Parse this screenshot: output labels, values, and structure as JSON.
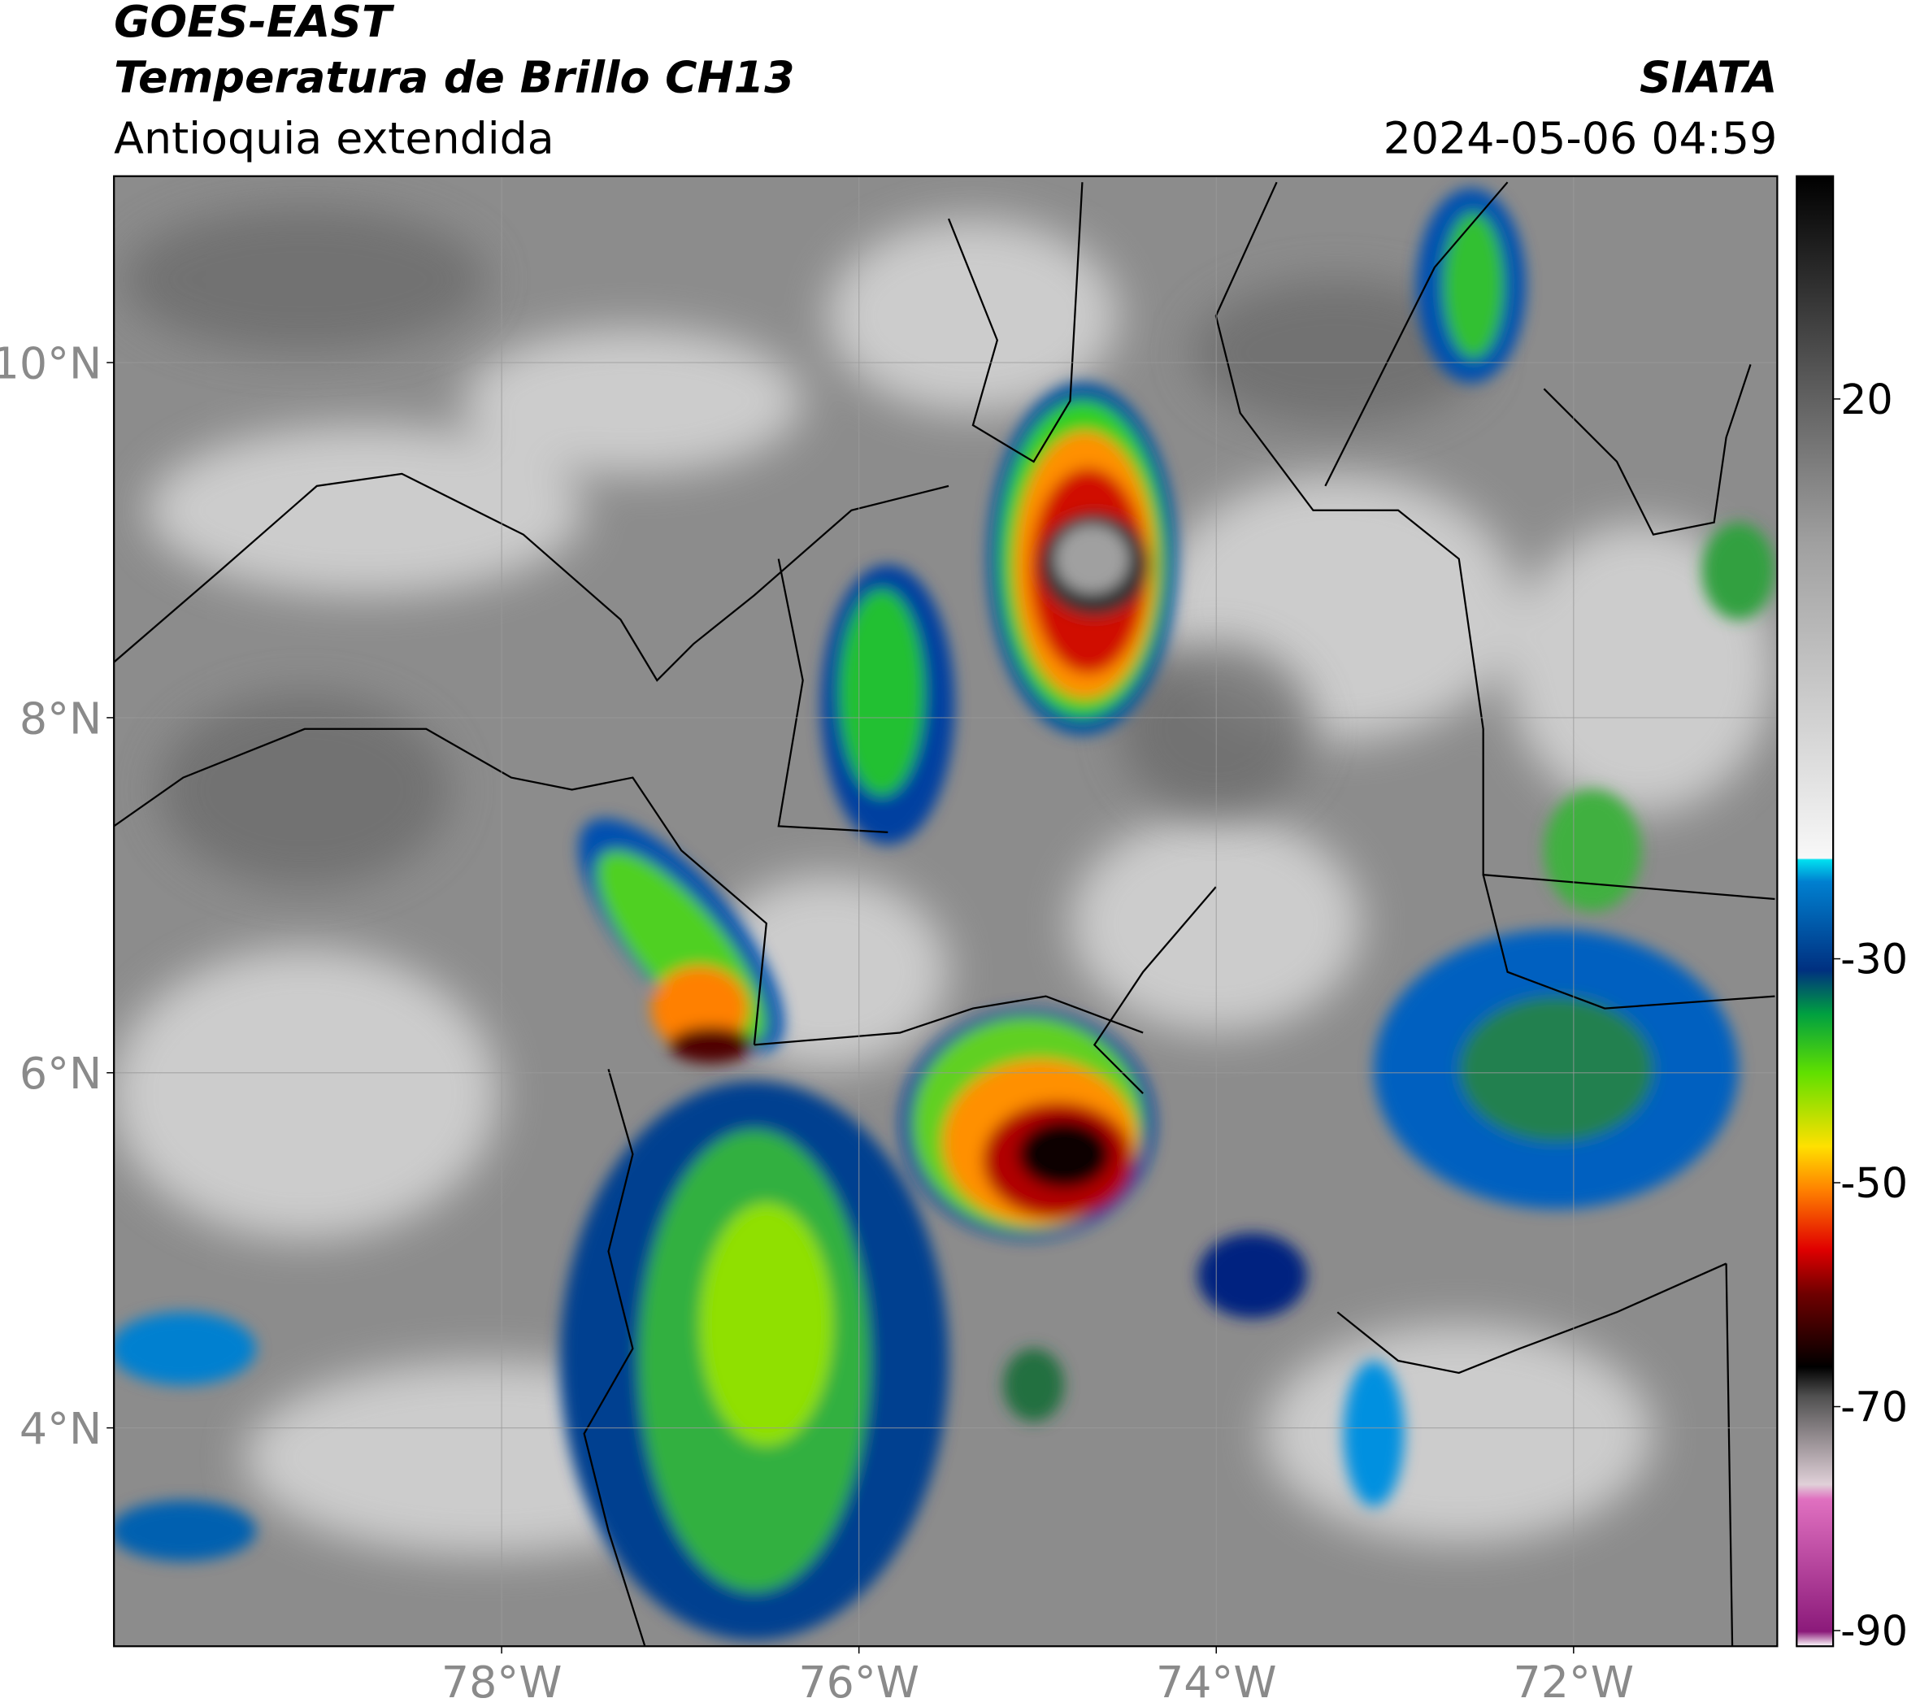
{
  "header": {
    "satellite": "GOES-EAST",
    "product": "Temperatura de Brillo CH13",
    "region": "Antioquia extendida",
    "source": "SIATA",
    "datetime": "2024-05-06 04:59"
  },
  "map": {
    "lonlim": [
      -80.17,
      -70.86
    ],
    "latlim": [
      2.77,
      11.05
    ],
    "lat_ticks": [
      {
        "value": 10,
        "label": "10°N"
      },
      {
        "value": 8,
        "label": "8°N"
      },
      {
        "value": 6,
        "label": "6°N"
      },
      {
        "value": 4,
        "label": "4°N"
      }
    ],
    "lon_ticks": [
      {
        "value": -78,
        "label": "78°W"
      },
      {
        "value": -76,
        "label": "76°W"
      },
      {
        "value": -74,
        "label": "74°W"
      },
      {
        "value": -72,
        "label": "72°W"
      }
    ]
  },
  "colorbar": {
    "clim": [
      -91.4,
      39.9
    ],
    "ticks": [
      20,
      -30,
      -50,
      -70,
      -90
    ]
  }
}
